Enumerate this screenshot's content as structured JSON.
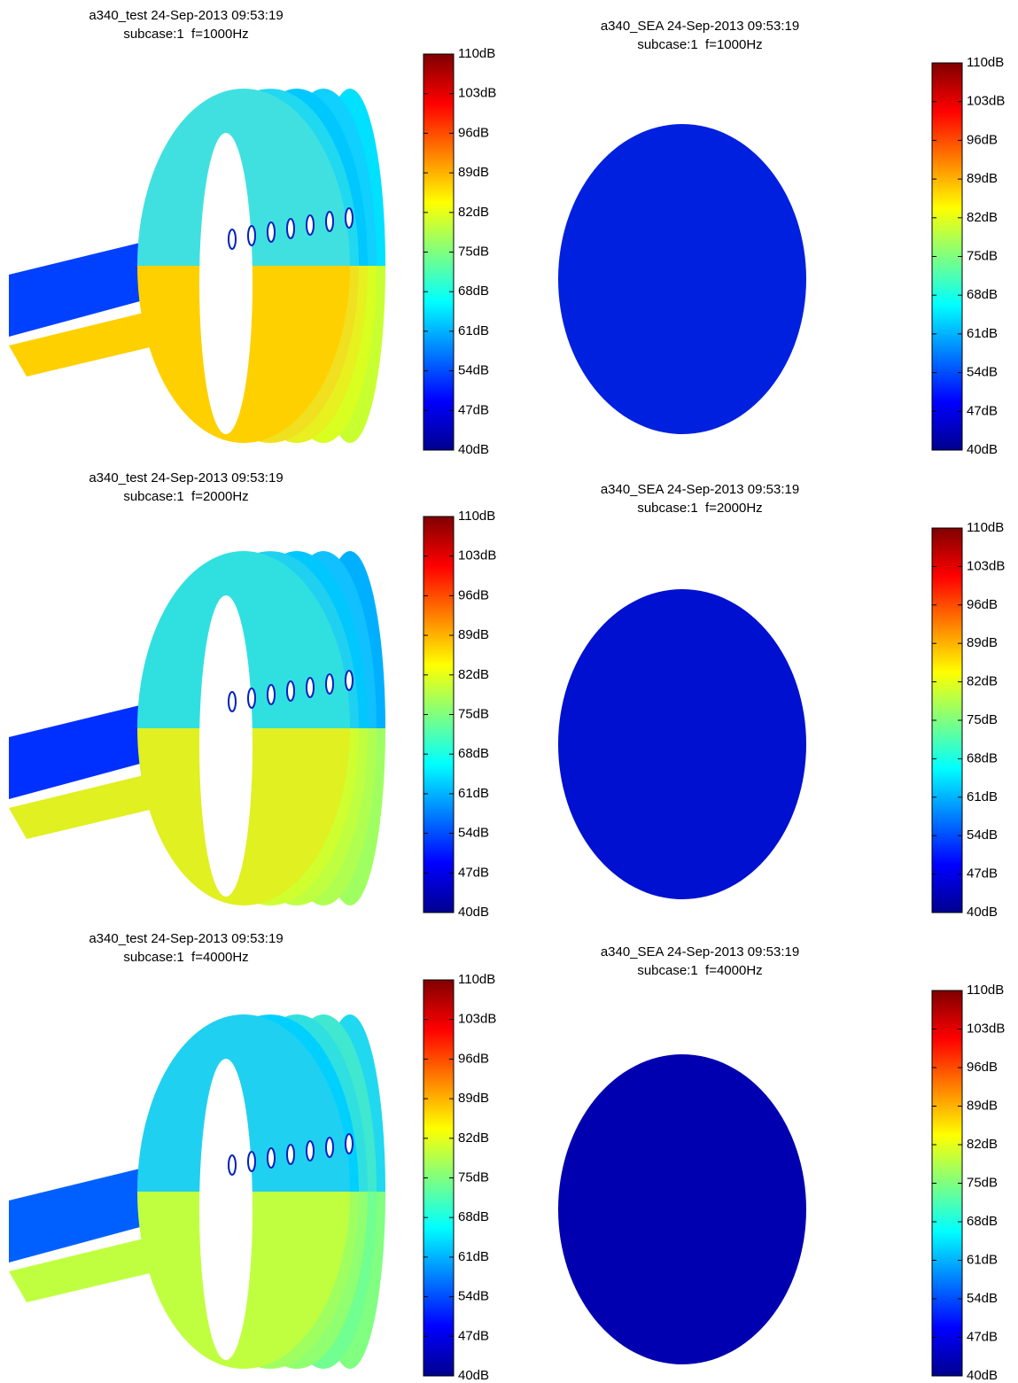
{
  "chart_data": [
    {
      "type": "surface",
      "title": "a340_test 24-Sep-2013 09:53:19",
      "subtitle": "subcase:1  f=1000Hz",
      "clim": [
        40,
        110
      ],
      "cticks": [
        {
          "value": 40,
          "label": "40dB"
        },
        {
          "value": 47,
          "label": "47dB"
        },
        {
          "value": 54,
          "label": "54dB"
        },
        {
          "value": 61,
          "label": "61dB"
        },
        {
          "value": 68,
          "label": "68dB"
        },
        {
          "value": 75,
          "label": "75dB"
        },
        {
          "value": 82,
          "label": "82dB"
        },
        {
          "value": 89,
          "label": "89dB"
        },
        {
          "value": 96,
          "label": "96dB"
        },
        {
          "value": 103,
          "label": "103dB"
        },
        {
          "value": 110,
          "label": "110dB"
        }
      ]
    },
    {
      "type": "surface",
      "title": "a340_SEA 24-Sep-2013 09:53:19",
      "subtitle": "subcase:1  f=1000Hz",
      "clim": [
        40,
        110
      ],
      "cticks": [
        {
          "value": 40,
          "label": "40dB"
        },
        {
          "value": 47,
          "label": "47dB"
        },
        {
          "value": 54,
          "label": "54dB"
        },
        {
          "value": 61,
          "label": "61dB"
        },
        {
          "value": 68,
          "label": "68dB"
        },
        {
          "value": 75,
          "label": "75dB"
        },
        {
          "value": 82,
          "label": "82dB"
        },
        {
          "value": 89,
          "label": "89dB"
        },
        {
          "value": 96,
          "label": "96dB"
        },
        {
          "value": 103,
          "label": "103dB"
        },
        {
          "value": 110,
          "label": "110dB"
        }
      ]
    },
    {
      "type": "surface",
      "title": "a340_test 24-Sep-2013 09:53:19",
      "subtitle": "subcase:1  f=2000Hz",
      "clim": [
        40,
        110
      ],
      "cticks": [
        {
          "value": 40,
          "label": "40dB"
        },
        {
          "value": 47,
          "label": "47dB"
        },
        {
          "value": 54,
          "label": "54dB"
        },
        {
          "value": 61,
          "label": "61dB"
        },
        {
          "value": 68,
          "label": "68dB"
        },
        {
          "value": 75,
          "label": "75dB"
        },
        {
          "value": 82,
          "label": "82dB"
        },
        {
          "value": 89,
          "label": "89dB"
        },
        {
          "value": 96,
          "label": "96dB"
        },
        {
          "value": 103,
          "label": "103dB"
        },
        {
          "value": 110,
          "label": "110dB"
        }
      ]
    },
    {
      "type": "surface",
      "title": "a340_SEA 24-Sep-2013 09:53:19",
      "subtitle": "subcase:1  f=2000Hz",
      "clim": [
        40,
        110
      ],
      "cticks": [
        {
          "value": 40,
          "label": "40dB"
        },
        {
          "value": 47,
          "label": "47dB"
        },
        {
          "value": 54,
          "label": "54dB"
        },
        {
          "value": 61,
          "label": "61dB"
        },
        {
          "value": 68,
          "label": "68dB"
        },
        {
          "value": 75,
          "label": "75dB"
        },
        {
          "value": 82,
          "label": "82dB"
        },
        {
          "value": 89,
          "label": "89dB"
        },
        {
          "value": 96,
          "label": "96dB"
        },
        {
          "value": 103,
          "label": "103dB"
        },
        {
          "value": 110,
          "label": "110dB"
        }
      ]
    },
    {
      "type": "surface",
      "title": "a340_test 24-Sep-2013 09:53:19",
      "subtitle": "subcase:1  f=4000Hz",
      "clim": [
        40,
        110
      ],
      "cticks": [
        {
          "value": 40,
          "label": "40dB"
        },
        {
          "value": 47,
          "label": "47dB"
        },
        {
          "value": 54,
          "label": "54dB"
        },
        {
          "value": 61,
          "label": "61dB"
        },
        {
          "value": 68,
          "label": "68dB"
        },
        {
          "value": 75,
          "label": "75dB"
        },
        {
          "value": 82,
          "label": "82dB"
        },
        {
          "value": 89,
          "label": "89dB"
        },
        {
          "value": 96,
          "label": "96dB"
        },
        {
          "value": 103,
          "label": "103dB"
        },
        {
          "value": 110,
          "label": "110dB"
        }
      ]
    },
    {
      "type": "surface",
      "title": "a340_SEA 24-Sep-2013 09:53:19",
      "subtitle": "subcase:1  f=4000Hz",
      "clim": [
        40,
        110
      ],
      "cticks": [
        {
          "value": 40,
          "label": "40dB"
        },
        {
          "value": 47,
          "label": "47dB"
        },
        {
          "value": 54,
          "label": "54dB"
        },
        {
          "value": 61,
          "label": "61dB"
        },
        {
          "value": 68,
          "label": "68dB"
        },
        {
          "value": 75,
          "label": "75dB"
        },
        {
          "value": 82,
          "label": "82dB"
        },
        {
          "value": 89,
          "label": "89dB"
        },
        {
          "value": 96,
          "label": "96dB"
        },
        {
          "value": 103,
          "label": "103dB"
        },
        {
          "value": 110,
          "label": "110dB"
        }
      ]
    }
  ]
}
